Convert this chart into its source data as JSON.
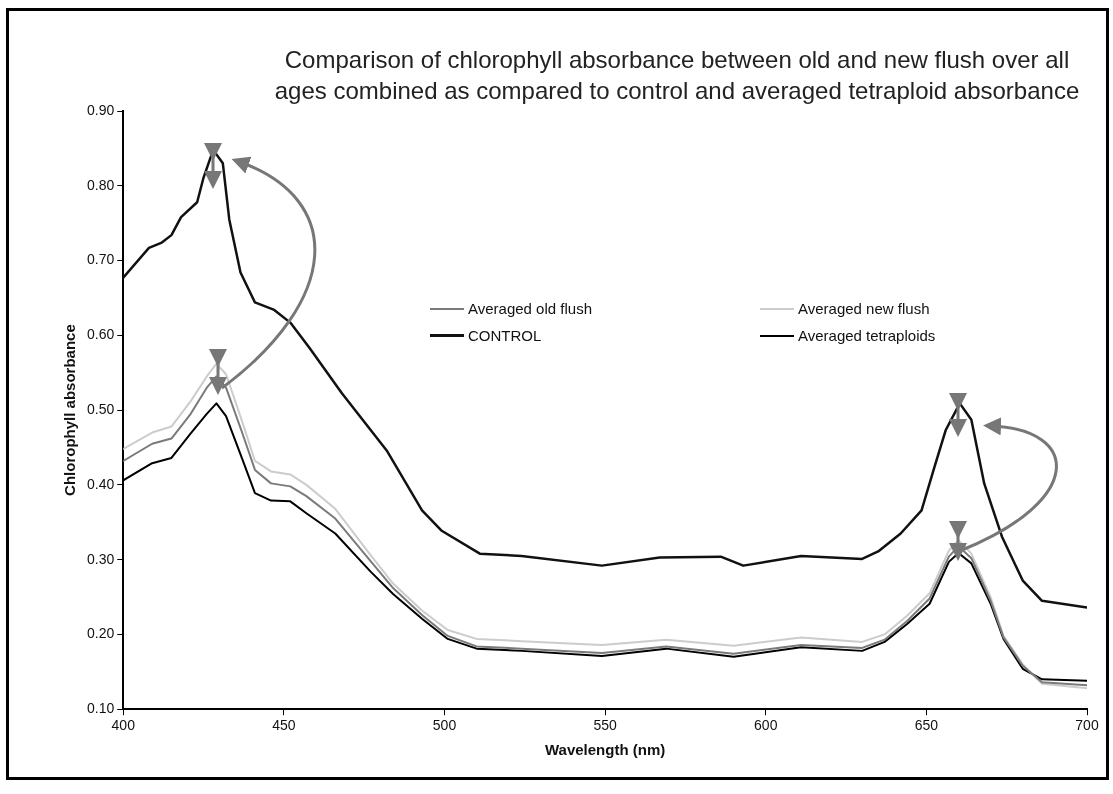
{
  "chart_data": {
    "type": "line",
    "title": "Comparison of chlorophyll absorbance between old and new flush over all ages combined as compared to control and averaged tetraploid absorbance",
    "xlabel": "Wavelength (nm)",
    "ylabel": "Chlorophyll absorbance",
    "xlim": [
      400,
      700
    ],
    "xticks": [
      400,
      450,
      500,
      550,
      600,
      650,
      700
    ],
    "ylim": [
      0.1,
      0.9
    ],
    "yticks": [
      {
        "value": 0.1,
        "label": "0.10"
      },
      {
        "value": 0.2,
        "label": "0.20"
      },
      {
        "value": 0.3,
        "label": "0.30"
      },
      {
        "value": 0.4,
        "label": "0.40"
      },
      {
        "value": 0.5,
        "label": "0.50"
      },
      {
        "value": 0.6,
        "label": "0.60"
      },
      {
        "value": 0.7,
        "label": "0.70"
      },
      {
        "value": 0.8,
        "label": "0.80"
      },
      {
        "value": 0.9,
        "label": "0.90"
      }
    ],
    "x": [
      400,
      409,
      415,
      421,
      426,
      429,
      432,
      437,
      441,
      446,
      452,
      457,
      466,
      477,
      484,
      493,
      501,
      510,
      524,
      549,
      569,
      590,
      611,
      630,
      637,
      644,
      651,
      657,
      660,
      664,
      670,
      674,
      680,
      686,
      700
    ],
    "grid": false,
    "legend": "top right",
    "marker": "none",
    "line_style": "solid",
    "series": [
      {
        "name": "Averaged old flush",
        "color": "#7a7a7a",
        "values": [
          0.432,
          0.455,
          0.462,
          0.495,
          0.53,
          0.545,
          0.53,
          0.47,
          0.42,
          0.402,
          0.398,
          0.385,
          0.355,
          0.298,
          0.262,
          0.226,
          0.198,
          0.184,
          0.181,
          0.175,
          0.184,
          0.174,
          0.186,
          0.182,
          0.193,
          0.218,
          0.248,
          0.304,
          0.318,
          0.302,
          0.245,
          0.196,
          0.158,
          0.136,
          0.132
        ]
      },
      {
        "name": "Averaged new flush",
        "color": "#cccccc",
        "values": [
          0.448,
          0.47,
          0.478,
          0.512,
          0.545,
          0.562,
          0.548,
          0.485,
          0.432,
          0.418,
          0.414,
          0.4,
          0.368,
          0.306,
          0.268,
          0.232,
          0.206,
          0.194,
          0.191,
          0.186,
          0.193,
          0.185,
          0.196,
          0.19,
          0.2,
          0.225,
          0.255,
          0.312,
          0.326,
          0.308,
          0.25,
          0.198,
          0.16,
          0.134,
          0.128
        ]
      },
      {
        "name": "CONTROL",
        "color": "#111111",
        "x": [
          400,
          408,
          412,
          415,
          418,
          423,
          425,
          428,
          431,
          433,
          436.5,
          441,
          447,
          452,
          458,
          468,
          482,
          493,
          499,
          511,
          524,
          549,
          567,
          586,
          593,
          611,
          630,
          635,
          642,
          648.5,
          652.6,
          656,
          660.4,
          664,
          668,
          673.5,
          680,
          686,
          700
        ],
        "values": [
          0.677,
          0.717,
          0.724,
          0.734,
          0.758,
          0.778,
          0.811,
          0.848,
          0.83,
          0.755,
          0.684,
          0.644,
          0.634,
          0.617,
          0.583,
          0.523,
          0.446,
          0.366,
          0.339,
          0.308,
          0.305,
          0.292,
          0.303,
          0.304,
          0.292,
          0.305,
          0.301,
          0.311,
          0.335,
          0.366,
          0.425,
          0.473,
          0.509,
          0.487,
          0.402,
          0.331,
          0.272,
          0.245,
          0.236
        ]
      },
      {
        "name": "Averaged tetraploids",
        "color": "#000000",
        "values": [
          0.406,
          0.429,
          0.436,
          0.469,
          0.495,
          0.509,
          0.492,
          0.435,
          0.389,
          0.379,
          0.378,
          0.362,
          0.335,
          0.284,
          0.254,
          0.221,
          0.194,
          0.181,
          0.178,
          0.171,
          0.181,
          0.17,
          0.183,
          0.178,
          0.19,
          0.214,
          0.241,
          0.297,
          0.309,
          0.295,
          0.241,
          0.194,
          0.154,
          0.14,
          0.138
        ]
      }
    ]
  }
}
